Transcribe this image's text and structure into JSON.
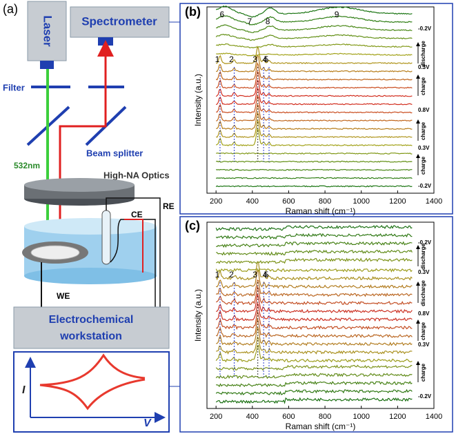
{
  "panel_labels": [
    "(a)",
    "(b)",
    "(c)"
  ],
  "schematic": {
    "laser": "Laser",
    "spectrometer": "Spectrometer",
    "filter": "Filter",
    "beam_splitter": "Beam splitter",
    "wavelength": "532nm",
    "optics": "High-NA Optics",
    "ce": "CE",
    "re": "RE",
    "we": "WE",
    "workstation": [
      "Electrochemical",
      "workstation"
    ],
    "cv_y": "I",
    "cv_x": "V"
  },
  "chart_data": [
    {
      "type": "line",
      "xlabel": "Raman shift (cm⁻¹)",
      "ylabel": "Intensity (a.u.)",
      "xlim": [
        150,
        1400
      ],
      "xticks": [
        200,
        400,
        600,
        800,
        1000,
        1200,
        1400
      ],
      "peaks": [
        {
          "label": "1",
          "x": 222
        },
        {
          "label": "2",
          "x": 300
        },
        {
          "label": "3",
          "x": 430
        },
        {
          "label": "4",
          "x": 462
        },
        {
          "label": "5",
          "x": 492
        },
        {
          "label": "6",
          "x": 248
        },
        {
          "label": "7",
          "x": 400
        },
        {
          "label": "8",
          "x": 500
        },
        {
          "label": "9",
          "x": 880
        }
      ],
      "side_labels": [
        "-0.2V",
        "discharge",
        "0.3V",
        "charge",
        "0.8V",
        "charge",
        "0.3V",
        "charge",
        "-0.2V"
      ]
    },
    {
      "type": "line",
      "xlabel": "Raman shift (cm⁻¹)",
      "ylabel": "Intensity (a.u.)",
      "xlim": [
        150,
        1400
      ],
      "xticks": [
        200,
        400,
        600,
        800,
        1000,
        1200,
        1400
      ],
      "peaks": [
        {
          "label": "1",
          "x": 222
        },
        {
          "label": "2",
          "x": 300
        },
        {
          "label": "3",
          "x": 430
        },
        {
          "label": "4",
          "x": 462
        },
        {
          "label": "5",
          "x": 492
        }
      ],
      "side_labels": [
        "-0.2V",
        "discharge",
        "0.3V",
        "discharge",
        "0.8V",
        "charge",
        "0.3V",
        "charge",
        "-0.2V"
      ]
    }
  ]
}
